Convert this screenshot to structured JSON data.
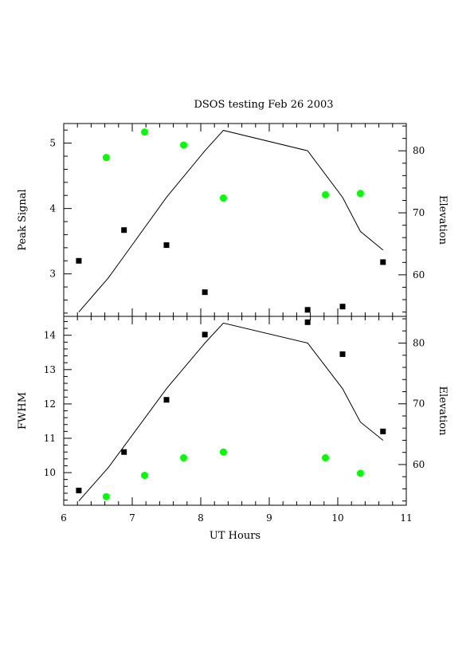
{
  "chart_data": [
    {
      "type": "scatter",
      "title": "DSOS testing Feb 26 2003",
      "ylabel": "Peak Signal",
      "y2label": "Elevation",
      "xlim": [
        6,
        11
      ],
      "ylim": [
        2.35,
        5.3
      ],
      "y2lim": [
        53.3,
        84.4
      ],
      "yticks": [
        3,
        4,
        5
      ],
      "y2ticks": [
        60,
        70,
        80
      ],
      "series": [
        {
          "marker": "square",
          "color": "#000000",
          "x": [
            6.22,
            6.88,
            7.5,
            8.06,
            9.56,
            10.07,
            10.66
          ],
          "y": [
            3.2,
            3.67,
            3.44,
            2.72,
            2.45,
            2.5,
            3.18
          ]
        },
        {
          "marker": "circle",
          "color": "#00ff00",
          "x": [
            6.62,
            7.18,
            7.75,
            8.33,
            9.82,
            10.33
          ],
          "y": [
            4.78,
            5.17,
            4.97,
            4.16,
            4.21,
            4.23
          ]
        },
        {
          "marker": "line",
          "axis": "right",
          "color": "#000000",
          "x": [
            6.22,
            6.65,
            6.88,
            7.5,
            8.06,
            8.33,
            9.56,
            10.07,
            10.33,
            10.66
          ],
          "y": [
            54,
            59.5,
            63,
            72.5,
            80,
            83.3,
            80,
            72.5,
            67,
            64
          ]
        }
      ]
    },
    {
      "type": "scatter",
      "xlabel": "UT Hours",
      "ylabel": "FWHM",
      "y2label": "Elevation",
      "xlim": [
        6,
        11
      ],
      "ylim": [
        9.05,
        14.55
      ],
      "y2lim": [
        53.3,
        84.4
      ],
      "xticks": [
        6,
        7,
        8,
        9,
        10,
        11
      ],
      "yticks": [
        10,
        11,
        12,
        13,
        14
      ],
      "y2ticks": [
        60,
        70,
        80
      ],
      "series": [
        {
          "marker": "square",
          "color": "#000000",
          "x": [
            6.22,
            6.88,
            7.5,
            8.06,
            9.56,
            10.07,
            10.66
          ],
          "y": [
            9.48,
            10.6,
            12.12,
            14.02,
            14.38,
            13.45,
            11.2
          ]
        },
        {
          "marker": "circle",
          "color": "#00ff00",
          "x": [
            6.62,
            7.18,
            7.75,
            8.33,
            9.82,
            10.33
          ],
          "y": [
            9.3,
            9.92,
            10.43,
            10.6,
            10.43,
            9.98
          ]
        },
        {
          "marker": "line",
          "axis": "right",
          "color": "#000000",
          "x": [
            6.22,
            6.65,
            6.88,
            7.5,
            8.06,
            8.33,
            9.56,
            10.07,
            10.33,
            10.66
          ],
          "y": [
            54,
            59.5,
            63,
            72.5,
            80,
            83.3,
            80,
            72.5,
            67,
            64
          ]
        }
      ]
    }
  ]
}
